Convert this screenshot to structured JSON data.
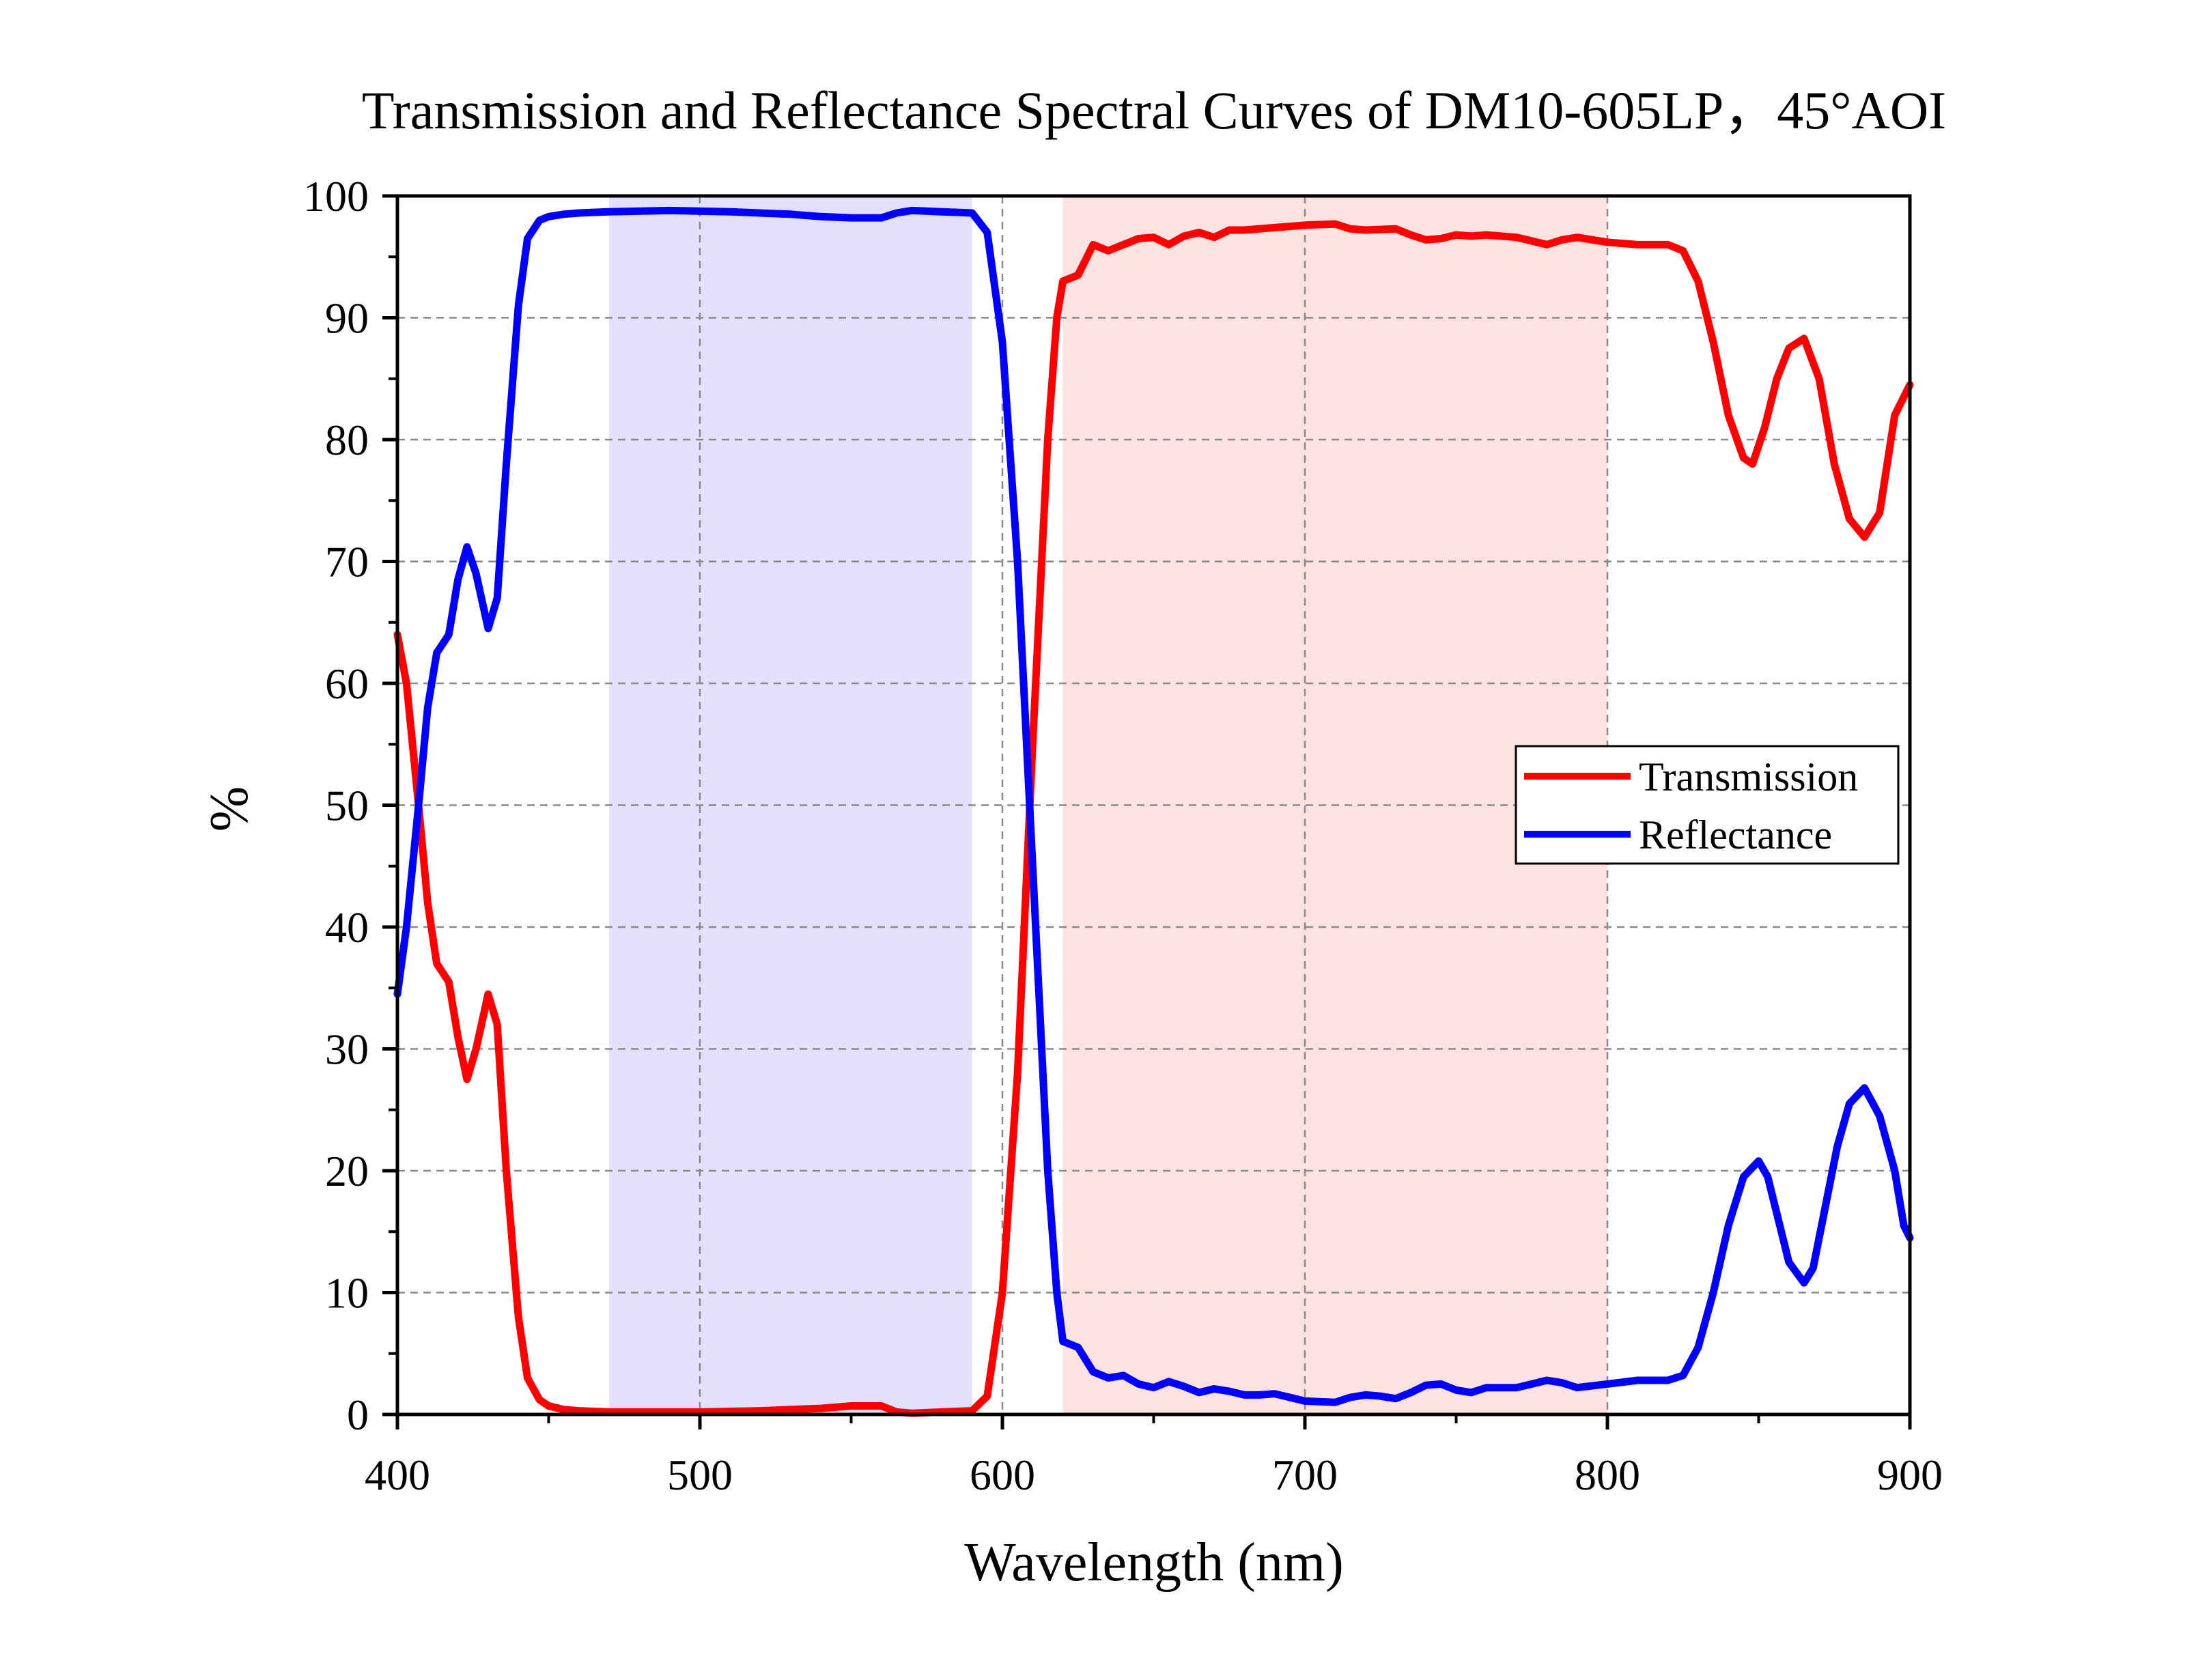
{
  "chart_data": {
    "type": "line",
    "title": "Transmission and Reflectance Spectral Curves of DM10-605LP，45°AOI",
    "xlabel": "Wavelength (nm)",
    "ylabel": "%",
    "xlim": [
      400,
      900
    ],
    "ylim": [
      0,
      100
    ],
    "xticks": [
      "400",
      "500",
      "600",
      "700",
      "800",
      "900"
    ],
    "yticks": [
      "0",
      "10",
      "20",
      "30",
      "40",
      "50",
      "60",
      "70",
      "80",
      "90",
      "100"
    ],
    "grid": true,
    "legend_position": "right-middle",
    "shaded_bands": [
      {
        "x_start": 470,
        "x_end": 590,
        "color": "#e3e0fb"
      },
      {
        "x_start": 620,
        "x_end": 800,
        "color": "#fde2e0"
      }
    ],
    "series": [
      {
        "name": "Transmission",
        "color": "#ff0000",
        "points": [
          [
            400,
            64
          ],
          [
            403,
            60
          ],
          [
            407,
            50
          ],
          [
            410,
            42
          ],
          [
            413,
            37
          ],
          [
            417,
            35.5
          ],
          [
            420,
            31
          ],
          [
            423,
            27.5
          ],
          [
            426,
            30
          ],
          [
            430,
            34.5
          ],
          [
            433,
            32
          ],
          [
            436,
            20
          ],
          [
            440,
            8
          ],
          [
            443,
            3
          ],
          [
            447,
            1.2
          ],
          [
            450,
            0.7
          ],
          [
            455,
            0.4
          ],
          [
            460,
            0.3
          ],
          [
            470,
            0.2
          ],
          [
            500,
            0.2
          ],
          [
            520,
            0.3
          ],
          [
            540,
            0.5
          ],
          [
            550,
            0.7
          ],
          [
            560,
            0.7
          ],
          [
            565,
            0.2
          ],
          [
            570,
            0.1
          ],
          [
            580,
            0.2
          ],
          [
            590,
            0.3
          ],
          [
            595,
            1.5
          ],
          [
            600,
            10
          ],
          [
            605,
            28
          ],
          [
            610,
            55
          ],
          [
            615,
            80
          ],
          [
            618,
            90
          ],
          [
            620,
            93
          ],
          [
            625,
            93.5
          ],
          [
            630,
            96
          ],
          [
            635,
            95.5
          ],
          [
            640,
            96
          ],
          [
            645,
            96.5
          ],
          [
            650,
            96.6
          ],
          [
            655,
            96
          ],
          [
            660,
            96.7
          ],
          [
            665,
            97
          ],
          [
            670,
            96.6
          ],
          [
            675,
            97.2
          ],
          [
            680,
            97.2
          ],
          [
            690,
            97.4
          ],
          [
            700,
            97.6
          ],
          [
            710,
            97.7
          ],
          [
            715,
            97.3
          ],
          [
            720,
            97.2
          ],
          [
            730,
            97.3
          ],
          [
            735,
            96.8
          ],
          [
            740,
            96.4
          ],
          [
            745,
            96.5
          ],
          [
            750,
            96.8
          ],
          [
            755,
            96.7
          ],
          [
            760,
            96.8
          ],
          [
            770,
            96.6
          ],
          [
            775,
            96.3
          ],
          [
            780,
            96
          ],
          [
            785,
            96.4
          ],
          [
            790,
            96.6
          ],
          [
            800,
            96.2
          ],
          [
            810,
            96
          ],
          [
            820,
            96
          ],
          [
            825,
            95.5
          ],
          [
            830,
            93
          ],
          [
            835,
            88
          ],
          [
            840,
            82
          ],
          [
            845,
            78.5
          ],
          [
            848,
            78
          ],
          [
            852,
            81
          ],
          [
            856,
            85
          ],
          [
            860,
            87.5
          ],
          [
            865,
            88.3
          ],
          [
            870,
            85
          ],
          [
            875,
            78
          ],
          [
            880,
            73.5
          ],
          [
            885,
            72
          ],
          [
            890,
            74
          ],
          [
            895,
            82
          ],
          [
            900,
            84.5
          ]
        ]
      },
      {
        "name": "Reflectance",
        "color": "#0000ff",
        "points": [
          [
            400,
            34.5
          ],
          [
            403,
            40
          ],
          [
            407,
            50
          ],
          [
            410,
            58
          ],
          [
            413,
            62.5
          ],
          [
            417,
            64
          ],
          [
            420,
            68.5
          ],
          [
            423,
            71.2
          ],
          [
            426,
            69
          ],
          [
            430,
            64.5
          ],
          [
            433,
            67
          ],
          [
            436,
            78
          ],
          [
            440,
            91
          ],
          [
            443,
            96.5
          ],
          [
            447,
            98
          ],
          [
            450,
            98.3
          ],
          [
            455,
            98.5
          ],
          [
            460,
            98.6
          ],
          [
            470,
            98.7
          ],
          [
            490,
            98.8
          ],
          [
            510,
            98.7
          ],
          [
            530,
            98.5
          ],
          [
            540,
            98.3
          ],
          [
            550,
            98.2
          ],
          [
            560,
            98.2
          ],
          [
            565,
            98.6
          ],
          [
            570,
            98.8
          ],
          [
            580,
            98.7
          ],
          [
            590,
            98.6
          ],
          [
            595,
            97
          ],
          [
            600,
            88
          ],
          [
            605,
            70
          ],
          [
            610,
            45
          ],
          [
            615,
            20
          ],
          [
            618,
            10
          ],
          [
            620,
            6
          ],
          [
            625,
            5.5
          ],
          [
            630,
            3.5
          ],
          [
            635,
            3
          ],
          [
            640,
            3.2
          ],
          [
            645,
            2.5
          ],
          [
            650,
            2.2
          ],
          [
            655,
            2.7
          ],
          [
            660,
            2.3
          ],
          [
            665,
            1.8
          ],
          [
            670,
            2.1
          ],
          [
            675,
            1.9
          ],
          [
            680,
            1.6
          ],
          [
            685,
            1.6
          ],
          [
            690,
            1.7
          ],
          [
            695,
            1.4
          ],
          [
            700,
            1.1
          ],
          [
            710,
            1.0
          ],
          [
            715,
            1.4
          ],
          [
            720,
            1.6
          ],
          [
            725,
            1.5
          ],
          [
            730,
            1.3
          ],
          [
            735,
            1.8
          ],
          [
            740,
            2.4
          ],
          [
            745,
            2.5
          ],
          [
            750,
            2.0
          ],
          [
            755,
            1.8
          ],
          [
            760,
            2.2
          ],
          [
            770,
            2.2
          ],
          [
            775,
            2.5
          ],
          [
            780,
            2.8
          ],
          [
            785,
            2.6
          ],
          [
            790,
            2.2
          ],
          [
            800,
            2.5
          ],
          [
            810,
            2.8
          ],
          [
            820,
            2.8
          ],
          [
            825,
            3.2
          ],
          [
            830,
            5.5
          ],
          [
            835,
            10
          ],
          [
            840,
            15.5
          ],
          [
            845,
            19.5
          ],
          [
            850,
            20.8
          ],
          [
            853,
            19.5
          ],
          [
            857,
            15.5
          ],
          [
            860,
            12.5
          ],
          [
            865,
            10.8
          ],
          [
            868,
            12
          ],
          [
            872,
            17
          ],
          [
            876,
            22
          ],
          [
            880,
            25.5
          ],
          [
            885,
            26.8
          ],
          [
            890,
            24.5
          ],
          [
            895,
            20
          ],
          [
            898,
            15.5
          ],
          [
            900,
            14.5
          ]
        ]
      }
    ]
  }
}
